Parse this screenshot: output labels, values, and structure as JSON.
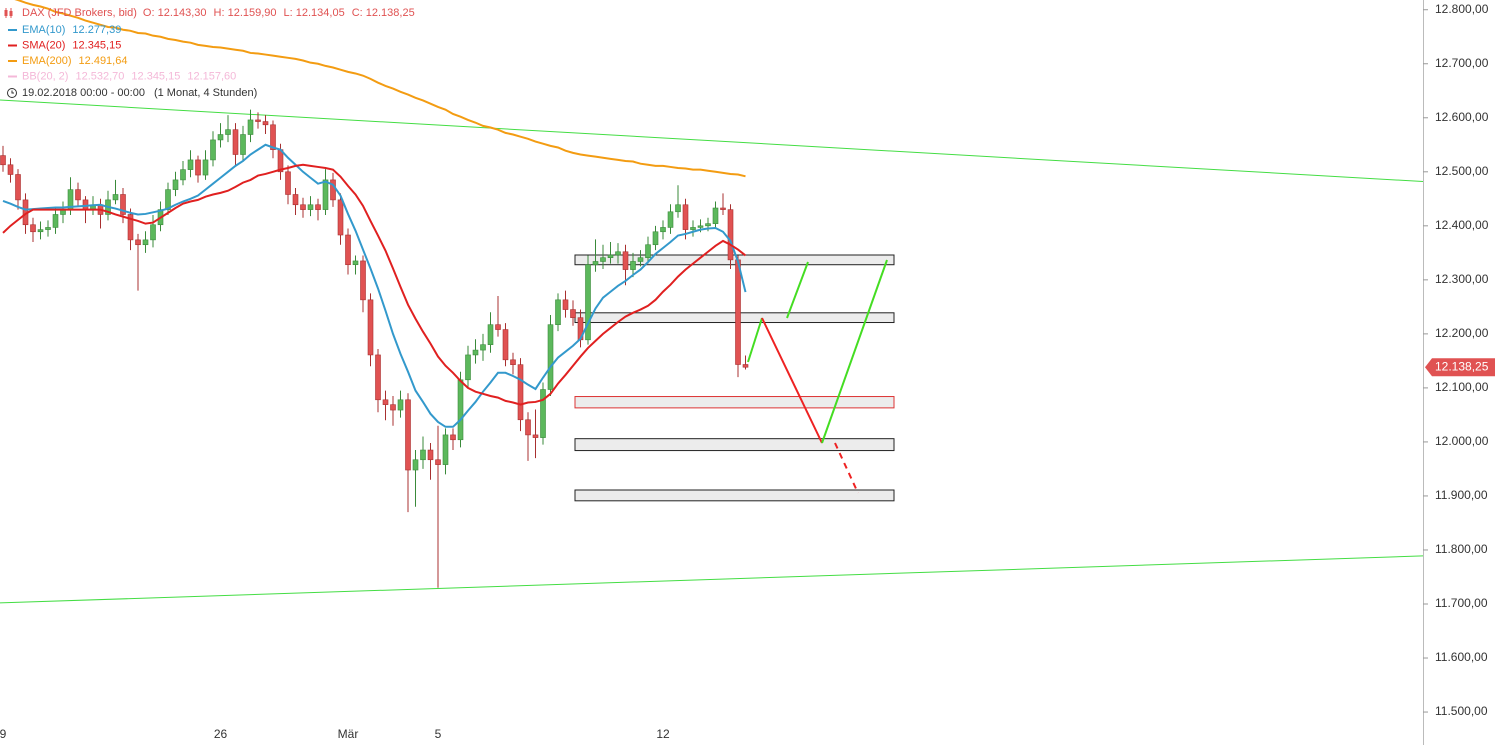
{
  "chart_data": {
    "type": "candlestick",
    "title": "DAX (JFD Brokers, bid)",
    "ohlc_labels": [
      "O: 12.143,30",
      "H: 12.159,90",
      "L: 12.134,05",
      "C: 12.138,25"
    ],
    "date_range": "19.02.2018 00:00 - 00:00",
    "interval": "(1 Monat, 4 Stunden)",
    "categories": [
      "9",
      null,
      null,
      null,
      null,
      null,
      null,
      null,
      null,
      null,
      null,
      null,
      null,
      null,
      null,
      null,
      null,
      null,
      null,
      null,
      null,
      null,
      null,
      null,
      null,
      null,
      null,
      null,
      null,
      "26",
      null,
      null,
      null,
      null,
      null,
      null,
      null,
      null,
      null,
      null,
      null,
      null,
      null,
      null,
      null,
      null,
      "Mär",
      null,
      null,
      null,
      null,
      null,
      null,
      null,
      null,
      null,
      null,
      null,
      "5",
      null,
      null,
      null,
      null,
      null,
      null,
      null,
      null,
      null,
      null,
      null,
      null,
      null,
      null,
      null,
      null,
      null,
      null,
      null,
      null,
      null,
      null,
      null,
      null,
      null,
      null,
      null,
      null,
      null,
      "12",
      null,
      null,
      null,
      null,
      null,
      null,
      null,
      null,
      null,
      null,
      null
    ],
    "open": [
      12530,
      12513,
      12495,
      12448,
      12402,
      12389,
      12393,
      12397,
      12421,
      12430,
      12467,
      12448,
      12430,
      12439,
      12421,
      12448,
      12458,
      12421,
      12374,
      12365,
      12374,
      12402,
      12430,
      12467,
      12485,
      12504,
      12522,
      12494,
      12522,
      12559,
      12569,
      12578,
      12532,
      12569,
      12596,
      12593,
      12587,
      12541,
      12500,
      12458,
      12439,
      12430,
      12439,
      12430,
      12485,
      12448,
      12383,
      12328,
      12335,
      12263,
      12161,
      12078,
      12069,
      12059,
      12078,
      11948,
      11967,
      11985,
      11967,
      11958,
      12013,
      12004,
      12115,
      12161,
      12170,
      12180,
      12217,
      12208,
      12152,
      12143,
      12041,
      12013,
      12008,
      12097,
      12217,
      12263,
      12245,
      12230,
      12189,
      12328,
      12334,
      12341,
      12346,
      12352,
      12319,
      12334,
      12341,
      12365,
      12389,
      12397,
      12426,
      12439,
      12393,
      12397,
      12400,
      12404,
      12433,
      12430,
      12337,
      12143.3
    ],
    "high": [
      12548,
      12525,
      12505,
      12460,
      12415,
      12408,
      12410,
      12435,
      12445,
      12490,
      12480,
      12455,
      12455,
      12450,
      12465,
      12485,
      12470,
      12432,
      12385,
      12390,
      12420,
      12445,
      12480,
      12500,
      12520,
      12540,
      12530,
      12540,
      12575,
      12590,
      12605,
      12590,
      12585,
      12615,
      12610,
      12605,
      12595,
      12552,
      12512,
      12470,
      12452,
      12455,
      12450,
      12505,
      12498,
      12460,
      12395,
      12345,
      12345,
      12275,
      12172,
      12095,
      12085,
      12095,
      12090,
      11985,
      12010,
      11998,
      12030,
      12025,
      12025,
      12130,
      12178,
      12190,
      12200,
      12240,
      12270,
      12220,
      12165,
      12155,
      12055,
      12060,
      12110,
      12235,
      12275,
      12280,
      12262,
      12245,
      12345,
      12375,
      12365,
      12370,
      12368,
      12365,
      12350,
      12355,
      12380,
      12400,
      12410,
      12440,
      12475,
      12450,
      12410,
      12412,
      12415,
      12445,
      12460,
      12440,
      12345,
      12159.9
    ],
    "low": [
      12500,
      12480,
      12430,
      12385,
      12370,
      12375,
      12380,
      12385,
      12405,
      12420,
      12435,
      12405,
      12420,
      12395,
      12410,
      12440,
      12405,
      12355,
      12280,
      12350,
      12360,
      12390,
      12420,
      12455,
      12475,
      12490,
      12480,
      12485,
      12510,
      12545,
      12555,
      12510,
      12520,
      12555,
      12580,
      12570,
      12525,
      12485,
      12440,
      12420,
      12415,
      12418,
      12410,
      12420,
      12435,
      12365,
      12310,
      12310,
      12240,
      12140,
      12055,
      12040,
      12030,
      12045,
      11870,
      11880,
      11950,
      11930,
      11730,
      11940,
      11985,
      11990,
      12100,
      12145,
      12150,
      12165,
      12195,
      12140,
      12125,
      12020,
      11965,
      11970,
      11995,
      12085,
      12205,
      12230,
      12215,
      12175,
      12180,
      12315,
      12320,
      12330,
      12330,
      12290,
      12305,
      12325,
      12330,
      12355,
      12375,
      12385,
      12415,
      12375,
      12380,
      12388,
      12390,
      12395,
      12420,
      12320,
      12120,
      12134.05
    ],
    "close": [
      12513,
      12495,
      12448,
      12402,
      12389,
      12393,
      12397,
      12421,
      12430,
      12467,
      12448,
      12430,
      12439,
      12421,
      12448,
      12458,
      12421,
      12374,
      12365,
      12374,
      12402,
      12430,
      12467,
      12485,
      12504,
      12522,
      12494,
      12522,
      12559,
      12569,
      12578,
      12532,
      12569,
      12596,
      12593,
      12587,
      12541,
      12500,
      12458,
      12439,
      12430,
      12439,
      12430,
      12485,
      12448,
      12383,
      12328,
      12335,
      12263,
      12161,
      12078,
      12069,
      12059,
      12078,
      11948,
      11967,
      11985,
      11967,
      11958,
      12013,
      12004,
      12115,
      12161,
      12170,
      12180,
      12217,
      12208,
      12152,
      12143,
      12041,
      12013,
      12008,
      12097,
      12217,
      12263,
      12245,
      12230,
      12189,
      12328,
      12334,
      12341,
      12346,
      12352,
      12319,
      12334,
      12341,
      12365,
      12389,
      12397,
      12426,
      12439,
      12393,
      12397,
      12400,
      12404,
      12433,
      12430,
      12337,
      12143.3,
      12138.25
    ],
    "up_color": "#5cb85c",
    "down_color": "#e05252",
    "price_tag": "12.138,25",
    "tag_color": "#e05252",
    "series": [
      {
        "name": "EMA(10)",
        "color": "#3399cc",
        "last_label": "12.277,39",
        "values": [
          12446,
          12441,
          12435,
          12430,
          12431,
          12432,
          12433,
          12434,
          12434,
          12435,
          12436,
          12437,
          12438,
          12439,
          12435,
          12432,
          12428,
          12424,
          12421,
          12422,
          12425,
          12428,
          12432,
          12439,
          12445,
          12450,
          12456,
          12467,
          12478,
          12489,
          12500,
          12511,
          12520,
          12532,
          12541,
          12550,
          12545,
          12541,
          12526,
          12513,
          12500,
          12489,
          12478,
          12482,
          12476,
          12456,
          12422,
          12391,
          12356,
          12321,
          12284,
          12243,
          12200,
          12163,
          12130,
          12095,
          12074,
          12052,
          12037,
          12028,
          12028,
          12041,
          12058,
          12074,
          12093,
          12110,
          12128,
          12128,
          12122,
          12115,
          12106,
          12098,
          12119,
          12139,
          12156,
          12167,
          12178,
          12191,
          12219,
          12247,
          12267,
          12278,
          12289,
          12298,
          12309,
          12319,
          12333,
          12348,
          12359,
          12370,
          12382,
          12385,
          12389,
          12393,
          12395,
          12396,
          12389,
          12372,
          12334,
          12277.39
        ]
      },
      {
        "name": "SMA(20)",
        "color": "#e02020",
        "last_label": "12.345,15",
        "values": [
          12387,
          12400,
          12411,
          12422,
          12430,
          12430,
          12430,
          12430,
          12430,
          12430,
          12430,
          12430,
          12430,
          12430,
          12426,
          12421,
          12417,
          12413,
          12409,
          12404,
          12406,
          12415,
          12424,
          12433,
          12441,
          12445,
          12448,
          12454,
          12458,
          12461,
          12465,
          12472,
          12480,
          12485,
          12493,
          12496,
          12500,
          12504,
          12507,
          12511,
          12513,
          12511,
          12509,
          12507,
          12504,
          12491,
          12474,
          12458,
          12437,
          12409,
          12382,
          12354,
          12321,
          12287,
          12254,
          12228,
          12204,
          12182,
          12158,
          12141,
          12128,
          12113,
          12100,
          12093,
          12089,
          12085,
          12082,
          12076,
          12073,
          12069,
          12073,
          12074,
          12078,
          12089,
          12108,
          12124,
          12141,
          12158,
          12174,
          12187,
          12200,
          12211,
          12222,
          12232,
          12239,
          12245,
          12252,
          12263,
          12278,
          12291,
          12306,
          12319,
          12330,
          12341,
          12352,
          12363,
          12372,
          12365,
          12356,
          12345.15
        ]
      },
      {
        "name": "EMA(200)",
        "color": "#f39c12",
        "last_label": "12.491,64",
        "values": [
          12826,
          12822,
          12818,
          12813,
          12809,
          12806,
          12802,
          12796,
          12793,
          12789,
          12785,
          12780,
          12776,
          12772,
          12768,
          12767,
          12763,
          12761,
          12757,
          12756,
          12752,
          12750,
          12746,
          12744,
          12741,
          12739,
          12735,
          12733,
          12731,
          12730,
          12728,
          12726,
          12724,
          12720,
          12719,
          12717,
          12715,
          12713,
          12711,
          12709,
          12706,
          12702,
          12700,
          12696,
          12693,
          12689,
          12685,
          12682,
          12678,
          12672,
          12665,
          12659,
          12654,
          12648,
          12643,
          12637,
          12632,
          12626,
          12620,
          12615,
          12607,
          12602,
          12596,
          12591,
          12585,
          12582,
          12578,
          12572,
          12569,
          12565,
          12561,
          12556,
          12552,
          12548,
          12545,
          12539,
          12535,
          12532,
          12530,
          12528,
          12526,
          12524,
          12522,
          12520,
          12519,
          12515,
          12513,
          12511,
          12511,
          12509,
          12507,
          12506,
          12504,
          12504,
          12502,
          12500,
          12498,
          12496,
          12495,
          12491.64
        ]
      }
    ],
    "bands": {
      "name": "BB(20, 2)",
      "color": "#f4b8d8",
      "labels": [
        "12.532,70",
        "12.345,15",
        "12.157,60"
      ]
    },
    "trendlines": [
      {
        "color": "#44dd44",
        "y_start": 12633,
        "y_end": 12482
      },
      {
        "color": "#44dd44",
        "y_start": 11702,
        "y_end": 11789
      }
    ],
    "zones": [
      {
        "top": 12346,
        "bottom": 12328,
        "stroke": "#222222"
      },
      {
        "top": 12239,
        "bottom": 12221,
        "stroke": "#222222"
      },
      {
        "top": 12084,
        "bottom": 12063,
        "stroke": "#dd3333"
      },
      {
        "top": 12006,
        "bottom": 11984,
        "stroke": "#222222"
      },
      {
        "top": 11911,
        "bottom": 11891,
        "stroke": "#222222"
      }
    ],
    "ylim": [
      11439,
      12818
    ],
    "yticks": [
      {
        "value": 11500,
        "label": "11.500,00"
      },
      {
        "value": 11600,
        "label": "11.600,00"
      },
      {
        "value": 11700,
        "label": "11.700,00"
      },
      {
        "value": 11800,
        "label": "11.800,00"
      },
      {
        "value": 11900,
        "label": "11.900,00"
      },
      {
        "value": 12000,
        "label": "12.000,00"
      },
      {
        "value": 12100,
        "label": "12.100,00"
      },
      {
        "value": 12200,
        "label": "12.200,00"
      },
      {
        "value": 12300,
        "label": "12.300,00"
      },
      {
        "value": 12400,
        "label": "12.400,00"
      },
      {
        "value": 12500,
        "label": "12.500,00"
      },
      {
        "value": 12600,
        "label": "12.600,00"
      },
      {
        "value": 12700,
        "label": "12.700,00"
      },
      {
        "value": 12800,
        "label": "12.800,00"
      }
    ],
    "grid": false
  }
}
